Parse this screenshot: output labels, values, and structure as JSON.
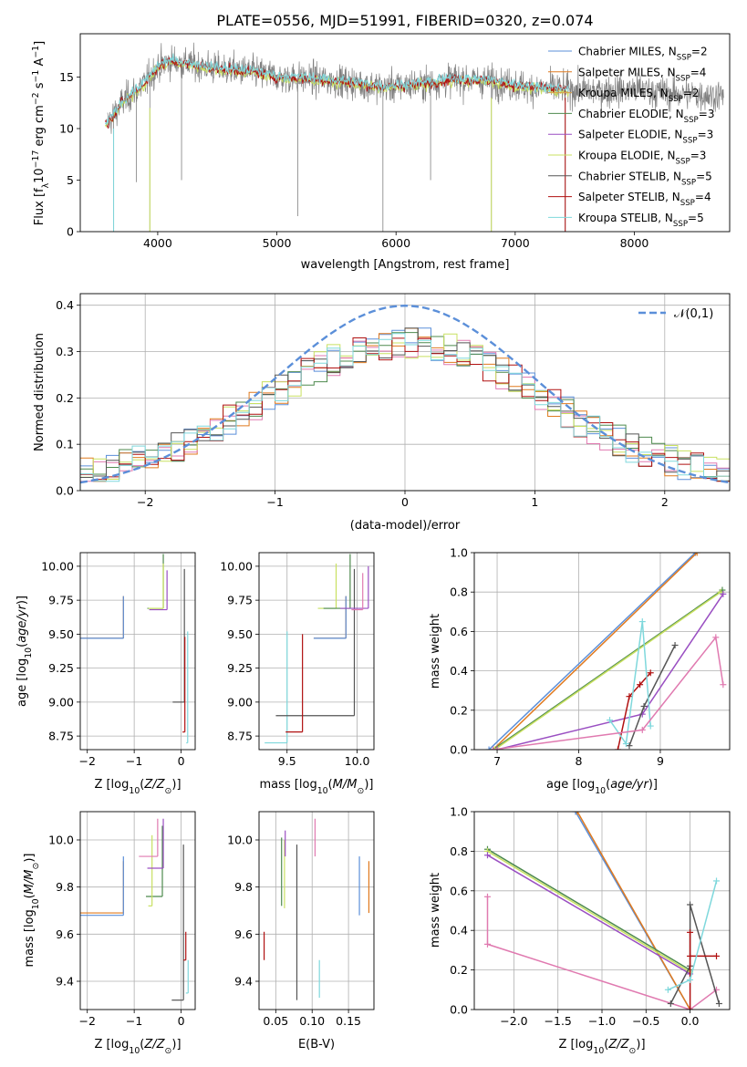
{
  "figure_title": "PLATE=0556, MJD=51991, FIBERID=0320, z=0.074",
  "colors": {
    "chabrier_miles": "#5b8fd9",
    "salpeter_miles": "#e07a1f",
    "kroupa_miles": "#d9a14a",
    "chabrier_elodie": "#4e8a4e",
    "salpeter_elodie": "#9a4fc2",
    "kroupa_elodie": "#c8e060",
    "chabrier_stelib": "#555555",
    "salpeter_stelib": "#b01010",
    "kroupa_stelib": "#7fd8dc",
    "pink": "#e07ab0",
    "gauss": "#5b8fd9",
    "data": "#808080"
  },
  "chart_data": [
    {
      "id": "spectrum",
      "type": "line",
      "title": "PLATE=0556, MJD=51991, FIBERID=0320, z=0.074",
      "xlabel": "wavelength [Angstrom, rest frame]",
      "ylabel": "Flux [f_λ 10^-17 erg cm^-2 s^-1 A^-1]",
      "xlim": [
        3350,
        8800
      ],
      "ylim": [
        0,
        19.2
      ],
      "xticks": [
        4000,
        5000,
        6000,
        7000,
        8000
      ],
      "yticks": [
        0,
        5,
        10,
        15
      ],
      "grid": false,
      "legend_position": "top-right",
      "legend": [
        "Chabrier MILES, N_SSP=2",
        "Salpeter MILES, N_SSP=4",
        "Kroupa MILES, N_SSP=2",
        "Chabrier ELODIE, N_SSP=3",
        "Salpeter ELODIE, N_SSP=3",
        "Kroupa ELODIE, N_SSP=3",
        "Chabrier STELIB, N_SSP=5",
        "Salpeter STELIB, N_SSP=4",
        "Kroupa STELIB, N_SSP=5"
      ],
      "continuum_x": [
        3580,
        3700,
        3800,
        3900,
        4000,
        4100,
        4300,
        4500,
        4800,
        5000,
        5300,
        5600,
        5900,
        6200,
        6500,
        6800,
        7100,
        7400,
        7700,
        8000,
        8300,
        8750
      ],
      "continuum_y": [
        10.5,
        12.5,
        13.5,
        14.5,
        16.0,
        16.5,
        16.2,
        15.8,
        15.5,
        15.0,
        14.8,
        14.5,
        14.0,
        14.3,
        14.8,
        14.6,
        14.0,
        13.8,
        13.6,
        13.8,
        13.4,
        13.2
      ],
      "absorption_lines": [
        [
          3630,
          0.0
        ],
        [
          3820,
          4.8
        ],
        [
          3934,
          0.0
        ],
        [
          4200,
          5.0
        ],
        [
          5175,
          1.5
        ],
        [
          5890,
          0.0
        ],
        [
          6290,
          5.0
        ],
        [
          6800,
          0.0
        ],
        [
          7420,
          0.0
        ]
      ]
    },
    {
      "id": "residuals",
      "type": "histogram",
      "xlabel": "(data-model)/error",
      "ylabel": "Normed distribution",
      "xlim": [
        -2.5,
        2.5
      ],
      "ylim": [
        0,
        0.425
      ],
      "xticks": [
        -2,
        -1,
        0,
        1,
        2
      ],
      "yticks": [
        0.0,
        0.1,
        0.2,
        0.3,
        0.4
      ],
      "grid": true,
      "legend_position": "top-right",
      "legend": [
        "𝒩(0,1)"
      ],
      "bin_width": 0.1
    },
    {
      "id": "age_vs_Z",
      "type": "scatter",
      "xlabel": "Z [log10(Z/Z_⊙)]",
      "ylabel": "age  [log10(age/yr)]",
      "xlim": [
        -2.15,
        0.3
      ],
      "ylim": [
        8.65,
        10.1
      ],
      "xticks": [
        -2,
        -1,
        0
      ],
      "yticks": [
        8.75,
        9.0,
        9.25,
        9.5,
        9.75,
        10.0
      ],
      "grid": true,
      "points": [
        {
          "x": -2.3,
          "y": 9.47,
          "xmax": -1.23,
          "ymax": 9.78,
          "c": "salpeter_miles"
        },
        {
          "x": -2.3,
          "y": 9.47,
          "xmax": -1.23,
          "ymax": 9.78,
          "c": "chabrier_miles"
        },
        {
          "x": -0.72,
          "y": 9.69,
          "xmax": -0.38,
          "ymax": 10.09,
          "c": "chabrier_elodie"
        },
        {
          "x": -0.7,
          "y": 9.69,
          "xmax": -0.38,
          "ymax": 10.02,
          "c": "kroupa_elodie"
        },
        {
          "x": -0.68,
          "y": 9.68,
          "xmax": -0.3,
          "ymax": 9.97,
          "c": "salpeter_elodie"
        },
        {
          "x": -0.18,
          "y": 9.0,
          "xmax": 0.07,
          "ymax": 9.98,
          "c": "chabrier_stelib"
        },
        {
          "x": 0.03,
          "y": 8.78,
          "xmax": 0.08,
          "ymax": 9.48,
          "c": "salpeter_stelib"
        },
        {
          "x": 0.11,
          "y": 8.7,
          "xmax": 0.14,
          "ymax": 9.52,
          "c": "kroupa_stelib"
        }
      ]
    },
    {
      "id": "age_vs_mass",
      "type": "scatter",
      "xlabel": "mass [log10(M/M_⊙)]",
      "ylabel": "",
      "xlim": [
        9.3,
        10.12
      ],
      "ylim": [
        8.65,
        10.1
      ],
      "xticks": [
        9.5,
        10.0
      ],
      "yticks": [
        8.75,
        9.0,
        9.25,
        9.5,
        9.75,
        10.0
      ],
      "grid": true,
      "points": [
        {
          "x": 9.34,
          "y": 8.7,
          "xmax": 9.5,
          "ymax": 9.52,
          "c": "kroupa_stelib"
        },
        {
          "x": 9.42,
          "y": 8.9,
          "xmax": 9.98,
          "ymax": 9.98,
          "c": "chabrier_stelib"
        },
        {
          "x": 9.49,
          "y": 8.78,
          "xmax": 9.61,
          "ymax": 9.5,
          "c": "salpeter_stelib"
        },
        {
          "x": 9.69,
          "y": 9.47,
          "xmax": 9.92,
          "ymax": 9.78,
          "c": "salpeter_miles"
        },
        {
          "x": 9.69,
          "y": 9.47,
          "xmax": 9.92,
          "ymax": 9.78,
          "c": "chabrier_miles"
        },
        {
          "x": 9.72,
          "y": 9.69,
          "xmax": 9.85,
          "ymax": 10.02,
          "c": "kroupa_elodie"
        },
        {
          "x": 9.76,
          "y": 9.69,
          "xmax": 9.95,
          "ymax": 10.09,
          "c": "chabrier_elodie"
        },
        {
          "x": 9.88,
          "y": 9.69,
          "xmax": 10.08,
          "ymax": 10.0,
          "c": "salpeter_elodie"
        },
        {
          "x": 9.96,
          "y": 9.68,
          "xmax": 10.04,
          "ymax": 9.95,
          "c": "pink"
        }
      ]
    },
    {
      "id": "mass_weight_vs_age",
      "type": "line",
      "xlabel": "age  [log10(age/yr)]",
      "ylabel": "mass weight",
      "xlim": [
        6.72,
        9.85
      ],
      "ylim": [
        0,
        1.0
      ],
      "xticks": [
        7,
        8,
        9
      ],
      "yticks": [
        0.0,
        0.2,
        0.4,
        0.6,
        0.8,
        1.0
      ],
      "grid": true,
      "series": [
        {
          "c": "chabrier_miles",
          "x": [
            6.9,
            9.43
          ],
          "y": [
            0.0,
            1.0
          ]
        },
        {
          "c": "salpeter_miles",
          "x": [
            6.95,
            9.45
          ],
          "y": [
            0.0,
            1.0
          ]
        },
        {
          "c": "chabrier_elodie",
          "x": [
            6.95,
            9.76
          ],
          "y": [
            0.0,
            0.81
          ]
        },
        {
          "c": "kroupa_elodie",
          "x": [
            6.97,
            9.74
          ],
          "y": [
            0.0,
            0.8
          ]
        },
        {
          "c": "salpeter_elodie",
          "x": [
            7.0,
            8.78,
            9.77
          ],
          "y": [
            0.0,
            0.18,
            0.79
          ]
        },
        {
          "c": "chabrier_stelib",
          "x": [
            8.62,
            8.8,
            9.18
          ],
          "y": [
            0.02,
            0.22,
            0.53
          ]
        },
        {
          "c": "salpeter_stelib",
          "x": [
            8.48,
            8.62,
            8.75,
            8.88
          ],
          "y": [
            0.0,
            0.27,
            0.33,
            0.39
          ]
        },
        {
          "c": "kroupa_stelib",
          "x": [
            8.38,
            8.58,
            8.78,
            8.88
          ],
          "y": [
            0.15,
            0.03,
            0.65,
            0.12
          ]
        },
        {
          "c": "pink",
          "x": [
            6.95,
            8.78,
            9.68,
            9.77
          ],
          "y": [
            0.0,
            0.1,
            0.57,
            0.33
          ]
        }
      ]
    },
    {
      "id": "mass_vs_Z",
      "type": "scatter",
      "xlabel": "Z [log10(Z/Z_⊙)]",
      "ylabel": "mass [log10(M/M_⊙)]",
      "xlim": [
        -2.15,
        0.3
      ],
      "ylim": [
        9.28,
        10.12
      ],
      "xticks": [
        -2,
        -1,
        0
      ],
      "yticks": [
        9.4,
        9.6,
        9.8,
        10.0
      ],
      "grid": true,
      "points": [
        {
          "x": -2.3,
          "y": 9.69,
          "xmax": -1.23,
          "ymax": 9.91,
          "c": "salpeter_miles"
        },
        {
          "x": -2.3,
          "y": 9.68,
          "xmax": -1.23,
          "ymax": 9.93,
          "c": "chabrier_miles"
        },
        {
          "x": -0.75,
          "y": 9.76,
          "xmax": -0.4,
          "ymax": 10.06,
          "c": "chabrier_elodie"
        },
        {
          "x": -0.7,
          "y": 9.72,
          "xmax": -0.62,
          "ymax": 10.02,
          "c": "kroupa_elodie"
        },
        {
          "x": -0.72,
          "y": 9.88,
          "xmax": -0.38,
          "ymax": 10.09,
          "c": "salpeter_elodie"
        },
        {
          "x": -0.9,
          "y": 9.93,
          "xmax": -0.5,
          "ymax": 10.09,
          "c": "pink"
        },
        {
          "x": -0.2,
          "y": 9.32,
          "xmax": 0.05,
          "ymax": 9.98,
          "c": "chabrier_stelib"
        },
        {
          "x": 0.05,
          "y": 9.49,
          "xmax": 0.1,
          "ymax": 9.61,
          "c": "salpeter_stelib"
        },
        {
          "x": 0.1,
          "y": 9.35,
          "xmax": 0.15,
          "ymax": 9.49,
          "c": "kroupa_stelib"
        }
      ]
    },
    {
      "id": "mass_vs_EBV",
      "type": "scatter",
      "xlabel": "E(B-V)",
      "ylabel": "",
      "xlim": [
        0.027,
        0.185
      ],
      "ylim": [
        9.28,
        10.12
      ],
      "xticks": [
        0.05,
        0.1,
        0.15
      ],
      "yticks": [
        9.4,
        9.6,
        9.8,
        10.0
      ],
      "grid": true,
      "segments": [
        {
          "x": 0.034,
          "y0": 9.49,
          "y1": 9.61,
          "c": "salpeter_stelib"
        },
        {
          "x": 0.058,
          "y0": 9.72,
          "y1": 10.01,
          "c": "chabrier_elodie"
        },
        {
          "x": 0.062,
          "y0": 9.71,
          "y1": 10.0,
          "c": "kroupa_elodie"
        },
        {
          "x": 0.063,
          "y0": 9.93,
          "y1": 10.04,
          "c": "salpeter_elodie"
        },
        {
          "x": 0.079,
          "y0": 9.32,
          "y1": 9.98,
          "c": "chabrier_stelib"
        },
        {
          "x": 0.104,
          "y0": 9.93,
          "y1": 10.09,
          "c": "pink"
        },
        {
          "x": 0.11,
          "y0": 9.33,
          "y1": 9.49,
          "c": "kroupa_stelib"
        },
        {
          "x": 0.165,
          "y0": 9.68,
          "y1": 9.93,
          "c": "chabrier_miles"
        },
        {
          "x": 0.178,
          "y0": 9.69,
          "y1": 9.91,
          "c": "salpeter_miles"
        }
      ]
    },
    {
      "id": "mass_weight_vs_Z",
      "type": "line",
      "xlabel": "Z [log10(Z/Z_⊙)]",
      "ylabel": "mass weight",
      "xlim": [
        -2.45,
        0.45
      ],
      "ylim": [
        0,
        1.0
      ],
      "xticks": [
        -2.0,
        -1.5,
        -1.0,
        -0.5,
        0.0
      ],
      "yticks": [
        0.0,
        0.2,
        0.4,
        0.6,
        0.8,
        1.0
      ],
      "grid": true,
      "series": [
        {
          "c": "chabrier_miles",
          "x": [
            -1.3,
            0.0
          ],
          "y": [
            1.0,
            0.0
          ]
        },
        {
          "c": "salpeter_miles",
          "x": [
            -1.28,
            0.0
          ],
          "y": [
            1.0,
            0.0
          ]
        },
        {
          "c": "chabrier_elodie",
          "x": [
            -2.3,
            0.0
          ],
          "y": [
            0.81,
            0.2
          ]
        },
        {
          "c": "kroupa_elodie",
          "x": [
            -2.3,
            0.0
          ],
          "y": [
            0.8,
            0.19
          ]
        },
        {
          "c": "salpeter_elodie",
          "x": [
            -2.3,
            0.0
          ],
          "y": [
            0.78,
            0.18
          ]
        },
        {
          "c": "pink",
          "x": [
            -2.3,
            -2.3,
            0.0,
            0.3
          ],
          "y": [
            0.57,
            0.33,
            0.0,
            0.1
          ]
        },
        {
          "c": "chabrier_stelib",
          "x": [
            -0.22,
            0.0,
            0.0,
            0.33
          ],
          "y": [
            0.03,
            0.22,
            0.53,
            0.03
          ]
        },
        {
          "c": "salpeter_stelib",
          "x": [
            0.0,
            0.0,
            0.0,
            0.3
          ],
          "y": [
            0.0,
            0.39,
            0.27,
            0.27
          ]
        },
        {
          "c": "kroupa_stelib",
          "x": [
            -0.25,
            0.0,
            0.3
          ],
          "y": [
            0.1,
            0.15,
            0.65
          ]
        }
      ]
    }
  ]
}
